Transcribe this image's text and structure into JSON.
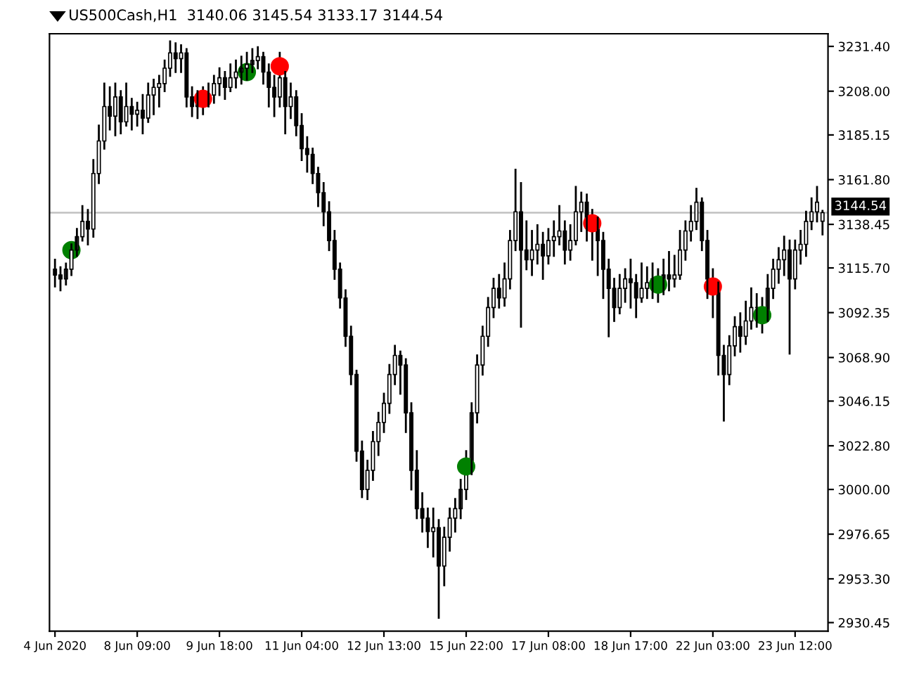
{
  "chart_data": {
    "type": "candlestick",
    "title": "US500Cash,H1  3140.06 3145.54 3133.17 3144.54",
    "color": "#000000",
    "categories": [
      "4 Jun 2020",
      null,
      null,
      null,
      null,
      null,
      null,
      null,
      null,
      null,
      null,
      null,
      null,
      null,
      null,
      "8 Jun 09:00",
      null,
      null,
      null,
      null,
      null,
      null,
      null,
      null,
      null,
      null,
      null,
      null,
      null,
      null,
      "9 Jun 18:00",
      null,
      null,
      null,
      null,
      null,
      null,
      null,
      null,
      null,
      null,
      null,
      null,
      null,
      null,
      "11 Jun 04:00",
      null,
      null,
      null,
      null,
      null,
      null,
      null,
      null,
      null,
      null,
      null,
      null,
      null,
      null,
      "12 Jun 13:00",
      null,
      null,
      null,
      null,
      null,
      null,
      null,
      null,
      null,
      null,
      null,
      null,
      null,
      null,
      "15 Jun 22:00",
      null,
      null,
      null,
      null,
      null,
      null,
      null,
      null,
      null,
      null,
      null,
      null,
      null,
      null,
      "17 Jun 08:00",
      null,
      null,
      null,
      null,
      null,
      null,
      null,
      null,
      null,
      null,
      null,
      null,
      null,
      null,
      "18 Jun 17:00",
      null,
      null,
      null,
      null,
      null,
      null,
      null,
      null,
      null,
      null,
      null,
      null,
      null,
      null,
      "22 Jun 03:00",
      null,
      null,
      null,
      null,
      null,
      null,
      null,
      null,
      null,
      null,
      null,
      null,
      null,
      null,
      "23 Jun 12:00",
      null,
      null,
      null,
      null,
      null
    ],
    "ohlc": [
      [
        3115,
        3120,
        3106,
        3112
      ],
      [
        3112,
        3116,
        3104,
        3110
      ],
      [
        3110,
        3118,
        3107,
        3115
      ],
      [
        3115,
        3128,
        3112,
        3125
      ],
      [
        3125,
        3136,
        3122,
        3132
      ],
      [
        3132,
        3148,
        3130,
        3140
      ],
      [
        3140,
        3146,
        3128,
        3136
      ],
      [
        3136,
        3172,
        3132,
        3165
      ],
      [
        3165,
        3190,
        3160,
        3182
      ],
      [
        3182,
        3212,
        3178,
        3200
      ],
      [
        3200,
        3210,
        3188,
        3195
      ],
      [
        3195,
        3212,
        3185,
        3205
      ],
      [
        3205,
        3208,
        3186,
        3192
      ],
      [
        3192,
        3212,
        3190,
        3200
      ],
      [
        3200,
        3204,
        3188,
        3196
      ],
      [
        3196,
        3202,
        3190,
        3198
      ],
      [
        3198,
        3206,
        3186,
        3194
      ],
      [
        3194,
        3212,
        3192,
        3206
      ],
      [
        3206,
        3214,
        3196,
        3210
      ],
      [
        3210,
        3216,
        3200,
        3212
      ],
      [
        3212,
        3224,
        3208,
        3220
      ],
      [
        3220,
        3234,
        3216,
        3228
      ],
      [
        3228,
        3233,
        3218,
        3225
      ],
      [
        3225,
        3232,
        3218,
        3228
      ],
      [
        3228,
        3230,
        3200,
        3205
      ],
      [
        3205,
        3210,
        3195,
        3200
      ],
      [
        3200,
        3208,
        3194,
        3205
      ],
      [
        3205,
        3210,
        3196,
        3204
      ],
      [
        3204,
        3212,
        3200,
        3206
      ],
      [
        3206,
        3216,
        3202,
        3212
      ],
      [
        3212,
        3220,
        3206,
        3215
      ],
      [
        3215,
        3218,
        3204,
        3210
      ],
      [
        3210,
        3222,
        3208,
        3215
      ],
      [
        3215,
        3224,
        3210,
        3218
      ],
      [
        3218,
        3226,
        3212,
        3220
      ],
      [
        3220,
        3228,
        3214,
        3222
      ],
      [
        3222,
        3230,
        3218,
        3224
      ],
      [
        3224,
        3231,
        3220,
        3226
      ],
      [
        3226,
        3228,
        3212,
        3218
      ],
      [
        3218,
        3222,
        3200,
        3210
      ],
      [
        3210,
        3216,
        3195,
        3205
      ],
      [
        3205,
        3228,
        3200,
        3215
      ],
      [
        3215,
        3218,
        3186,
        3200
      ],
      [
        3200,
        3212,
        3194,
        3205
      ],
      [
        3205,
        3208,
        3185,
        3190
      ],
      [
        3190,
        3196,
        3172,
        3178
      ],
      [
        3178,
        3184,
        3166,
        3175
      ],
      [
        3175,
        3178,
        3160,
        3165
      ],
      [
        3165,
        3168,
        3148,
        3155
      ],
      [
        3155,
        3160,
        3138,
        3145
      ],
      [
        3145,
        3150,
        3125,
        3130
      ],
      [
        3130,
        3135,
        3110,
        3115
      ],
      [
        3115,
        3118,
        3095,
        3100
      ],
      [
        3100,
        3104,
        3075,
        3080
      ],
      [
        3080,
        3085,
        3055,
        3060
      ],
      [
        3060,
        3062,
        3015,
        3020
      ],
      [
        3020,
        3025,
        2996,
        3000
      ],
      [
        3000,
        3015,
        2995,
        3010
      ],
      [
        3010,
        3030,
        3005,
        3025
      ],
      [
        3025,
        3040,
        3018,
        3035
      ],
      [
        3035,
        3050,
        3030,
        3045
      ],
      [
        3045,
        3065,
        3040,
        3060
      ],
      [
        3060,
        3075,
        3055,
        3070
      ],
      [
        3070,
        3072,
        3050,
        3065
      ],
      [
        3065,
        3068,
        3030,
        3040
      ],
      [
        3040,
        3045,
        3000,
        3010
      ],
      [
        3010,
        3020,
        2985,
        2990
      ],
      [
        2990,
        2998,
        2978,
        2985
      ],
      [
        2985,
        2990,
        2970,
        2978
      ],
      [
        2978,
        2990,
        2965,
        2980
      ],
      [
        2980,
        2984,
        2933,
        2960
      ],
      [
        2960,
        2980,
        2950,
        2975
      ],
      [
        2975,
        2990,
        2968,
        2985
      ],
      [
        2985,
        2995,
        2978,
        2990
      ],
      [
        2990,
        3005,
        2985,
        3000
      ],
      [
        3000,
        3020,
        2995,
        3012
      ],
      [
        3012,
        3045,
        3008,
        3040
      ],
      [
        3040,
        3070,
        3035,
        3065
      ],
      [
        3065,
        3085,
        3060,
        3080
      ],
      [
        3080,
        3100,
        3075,
        3095
      ],
      [
        3095,
        3110,
        3090,
        3105
      ],
      [
        3105,
        3112,
        3095,
        3100
      ],
      [
        3100,
        3118,
        3096,
        3110
      ],
      [
        3110,
        3135,
        3105,
        3130
      ],
      [
        3130,
        3167,
        3125,
        3145
      ],
      [
        3145,
        3160,
        3085,
        3125
      ],
      [
        3125,
        3140,
        3115,
        3120
      ],
      [
        3120,
        3135,
        3112,
        3125
      ],
      [
        3125,
        3138,
        3118,
        3128
      ],
      [
        3128,
        3134,
        3110,
        3122
      ],
      [
        3122,
        3136,
        3118,
        3130
      ],
      [
        3130,
        3140,
        3122,
        3132
      ],
      [
        3132,
        3148,
        3128,
        3135
      ],
      [
        3135,
        3140,
        3118,
        3125
      ],
      [
        3125,
        3138,
        3120,
        3130
      ],
      [
        3130,
        3158,
        3128,
        3145
      ],
      [
        3145,
        3155,
        3135,
        3150
      ],
      [
        3150,
        3154,
        3130,
        3140
      ],
      [
        3140,
        3146,
        3120,
        3139
      ],
      [
        3139,
        3142,
        3112,
        3130
      ],
      [
        3130,
        3134,
        3100,
        3115
      ],
      [
        3115,
        3120,
        3080,
        3105
      ],
      [
        3105,
        3110,
        3088,
        3095
      ],
      [
        3095,
        3112,
        3092,
        3105
      ],
      [
        3105,
        3115,
        3098,
        3110
      ],
      [
        3110,
        3120,
        3095,
        3108
      ],
      [
        3108,
        3112,
        3090,
        3100
      ],
      [
        3100,
        3118,
        3098,
        3105
      ],
      [
        3105,
        3116,
        3100,
        3108
      ],
      [
        3108,
        3118,
        3100,
        3110
      ],
      [
        3110,
        3115,
        3098,
        3107
      ],
      [
        3107,
        3120,
        3102,
        3112
      ],
      [
        3112,
        3124,
        3104,
        3110
      ],
      [
        3110,
        3122,
        3106,
        3112
      ],
      [
        3112,
        3135,
        3110,
        3125
      ],
      [
        3125,
        3140,
        3120,
        3135
      ],
      [
        3135,
        3148,
        3130,
        3140
      ],
      [
        3140,
        3157,
        3136,
        3150
      ],
      [
        3150,
        3152,
        3125,
        3130
      ],
      [
        3130,
        3135,
        3100,
        3110
      ],
      [
        3110,
        3115,
        3090,
        3106
      ],
      [
        3106,
        3108,
        3060,
        3070
      ],
      [
        3070,
        3075,
        3036,
        3060
      ],
      [
        3060,
        3080,
        3055,
        3075
      ],
      [
        3075,
        3090,
        3070,
        3085
      ],
      [
        3085,
        3092,
        3072,
        3080
      ],
      [
        3080,
        3098,
        3076,
        3088
      ],
      [
        3088,
        3105,
        3084,
        3095
      ],
      [
        3095,
        3102,
        3085,
        3095
      ],
      [
        3095,
        3100,
        3082,
        3091
      ],
      [
        3091,
        3112,
        3088,
        3105
      ],
      [
        3105,
        3120,
        3100,
        3115
      ],
      [
        3115,
        3126,
        3108,
        3120
      ],
      [
        3120,
        3132,
        3112,
        3125
      ],
      [
        3125,
        3130,
        3071,
        3110
      ],
      [
        3110,
        3130,
        3105,
        3125
      ],
      [
        3125,
        3135,
        3118,
        3128
      ],
      [
        3128,
        3145,
        3122,
        3140
      ],
      [
        3140,
        3152,
        3136,
        3145
      ],
      [
        3145,
        3158,
        3140,
        3150
      ],
      [
        3140.06,
        3145.54,
        3133.17,
        3144.54
      ]
    ],
    "series": [
      {
        "type": "scatter",
        "color": "#008000",
        "marker": "circle",
        "values": [
          null,
          null,
          null,
          3125,
          null,
          null,
          null,
          null,
          null,
          null,
          null,
          null,
          null,
          null,
          null,
          null,
          null,
          null,
          null,
          null,
          null,
          null,
          null,
          null,
          null,
          null,
          null,
          null,
          null,
          null,
          null,
          null,
          null,
          null,
          null,
          3218,
          null,
          null,
          null,
          null,
          null,
          null,
          null,
          null,
          null,
          null,
          null,
          null,
          null,
          null,
          null,
          null,
          null,
          null,
          null,
          null,
          null,
          null,
          null,
          null,
          null,
          null,
          null,
          null,
          null,
          null,
          null,
          null,
          null,
          null,
          null,
          null,
          null,
          null,
          null,
          3012,
          null,
          null,
          null,
          null,
          null,
          null,
          null,
          null,
          null,
          null,
          null,
          null,
          null,
          null,
          null,
          null,
          null,
          null,
          null,
          null,
          null,
          null,
          null,
          null,
          null,
          null,
          null,
          null,
          null,
          null,
          null,
          null,
          null,
          null,
          3107,
          null,
          null,
          null,
          null,
          null,
          null,
          null,
          null,
          null,
          null,
          null,
          null,
          null,
          null,
          null,
          null,
          null,
          null,
          3091,
          null,
          null,
          null,
          null,
          null,
          null,
          null,
          null,
          null,
          null,
          null
        ]
      },
      {
        "type": "scatter",
        "color": "#ff0000",
        "marker": "circle",
        "values": [
          null,
          null,
          null,
          null,
          null,
          null,
          null,
          null,
          null,
          null,
          null,
          null,
          null,
          null,
          null,
          null,
          null,
          null,
          null,
          null,
          null,
          null,
          null,
          null,
          null,
          null,
          null,
          3204,
          null,
          null,
          null,
          null,
          null,
          null,
          null,
          null,
          null,
          null,
          null,
          null,
          null,
          3221,
          null,
          null,
          null,
          null,
          null,
          null,
          null,
          null,
          null,
          null,
          null,
          null,
          null,
          null,
          null,
          null,
          null,
          null,
          null,
          null,
          null,
          null,
          null,
          null,
          null,
          null,
          null,
          null,
          null,
          null,
          null,
          null,
          null,
          null,
          null,
          null,
          null,
          null,
          null,
          null,
          null,
          null,
          null,
          null,
          null,
          null,
          null,
          null,
          null,
          null,
          null,
          null,
          null,
          null,
          null,
          null,
          3139,
          null,
          null,
          null,
          null,
          null,
          null,
          null,
          null,
          null,
          null,
          null,
          null,
          null,
          null,
          null,
          null,
          null,
          null,
          null,
          null,
          null,
          3106,
          null,
          null,
          null,
          null,
          null,
          null,
          null,
          null,
          null,
          null,
          null,
          null,
          null,
          null,
          null,
          null,
          null,
          null,
          null,
          null
        ]
      }
    ],
    "ylim": [
      2926,
      3238
    ],
    "yticks": [
      {
        "value": 3231.4,
        "label": "3231.40"
      },
      {
        "value": 3208,
        "label": "3208.00"
      },
      {
        "value": 3185.15,
        "label": "3185.15"
      },
      {
        "value": 3161.8,
        "label": "3161.80"
      },
      {
        "value": 3138.45,
        "label": "3138.45"
      },
      {
        "value": 3115.7,
        "label": "3115.70"
      },
      {
        "value": 3092.35,
        "label": "3092.35"
      },
      {
        "value": 3068.9,
        "label": "3068.90"
      },
      {
        "value": 3046.15,
        "label": "3046.15"
      },
      {
        "value": 3022.8,
        "label": "3022.80"
      },
      {
        "value": 3000,
        "label": "3000.00"
      },
      {
        "value": 2976.65,
        "label": "2976.65"
      },
      {
        "value": 2953.3,
        "label": "2953.30"
      },
      {
        "value": 2930.45,
        "label": "2930.45"
      }
    ],
    "ref_lines": [
      {
        "axis": "y",
        "value": 3144.54,
        "label": "3144.54",
        "color": "#c0c0c0",
        "line_style": "solid"
      }
    ],
    "grid": false,
    "legend": false
  }
}
